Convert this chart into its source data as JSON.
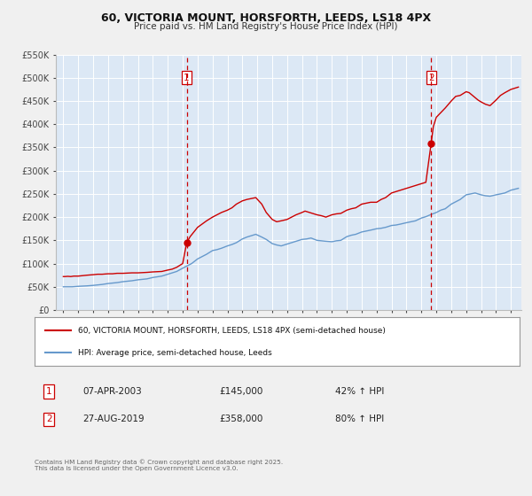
{
  "title": "60, VICTORIA MOUNT, HORSFORTH, LEEDS, LS18 4PX",
  "subtitle": "Price paid vs. HM Land Registry's House Price Index (HPI)",
  "bg_color": "#f0f0f0",
  "plot_bg_color": "#dce8f5",
  "grid_color": "#ffffff",
  "ylim": [
    0,
    550000
  ],
  "yticks": [
    0,
    50000,
    100000,
    150000,
    200000,
    250000,
    300000,
    350000,
    400000,
    450000,
    500000,
    550000
  ],
  "ytick_labels": [
    "£0",
    "£50K",
    "£100K",
    "£150K",
    "£200K",
    "£250K",
    "£300K",
    "£350K",
    "£400K",
    "£450K",
    "£500K",
    "£550K"
  ],
  "xlim_start": 1994.5,
  "xlim_end": 2025.7,
  "xticks": [
    1995,
    1996,
    1997,
    1998,
    1999,
    2000,
    2001,
    2002,
    2003,
    2004,
    2005,
    2006,
    2007,
    2008,
    2009,
    2010,
    2011,
    2012,
    2013,
    2014,
    2015,
    2016,
    2017,
    2018,
    2019,
    2020,
    2021,
    2022,
    2023,
    2024,
    2025
  ],
  "property_color": "#cc0000",
  "hpi_color": "#6699cc",
  "vline_color": "#cc0000",
  "marker_color": "#cc0000",
  "legend_label_property": "60, VICTORIA MOUNT, HORSFORTH, LEEDS, LS18 4PX (semi-detached house)",
  "legend_label_hpi": "HPI: Average price, semi-detached house, Leeds",
  "sale1_year": 2003.27,
  "sale1_price": 145000,
  "sale1_label": "1",
  "sale1_date": "07-APR-2003",
  "sale1_hpi_pct": "42%",
  "sale2_year": 2019.65,
  "sale2_price": 358000,
  "sale2_label": "2",
  "sale2_date": "27-AUG-2019",
  "sale2_hpi_pct": "80%",
  "footer": "Contains HM Land Registry data © Crown copyright and database right 2025.\nThis data is licensed under the Open Government Licence v3.0.",
  "property_x": [
    1995.0,
    1995.1,
    1995.3,
    1995.5,
    1995.7,
    1996.0,
    1996.3,
    1996.6,
    1997.0,
    1997.3,
    1997.6,
    1998.0,
    1998.3,
    1998.6,
    1999.0,
    1999.3,
    1999.6,
    2000.0,
    2000.3,
    2000.6,
    2001.0,
    2001.3,
    2001.6,
    2002.0,
    2002.3,
    2002.6,
    2003.0,
    2003.27,
    2003.5,
    2003.8,
    2004.0,
    2004.3,
    2004.6,
    2005.0,
    2005.3,
    2005.6,
    2006.0,
    2006.3,
    2006.6,
    2007.0,
    2007.3,
    2007.6,
    2007.9,
    2008.3,
    2008.6,
    2009.0,
    2009.3,
    2009.6,
    2010.0,
    2010.3,
    2010.6,
    2011.0,
    2011.2,
    2011.5,
    2011.8,
    2012.0,
    2012.3,
    2012.6,
    2013.0,
    2013.3,
    2013.6,
    2014.0,
    2014.3,
    2014.6,
    2015.0,
    2015.3,
    2015.6,
    2016.0,
    2016.3,
    2016.6,
    2017.0,
    2017.3,
    2017.6,
    2018.0,
    2018.3,
    2018.6,
    2019.0,
    2019.3,
    2019.65,
    2019.8,
    2020.0,
    2020.3,
    2020.6,
    2021.0,
    2021.3,
    2021.6,
    2022.0,
    2022.2,
    2022.5,
    2022.8,
    2023.0,
    2023.3,
    2023.6,
    2024.0,
    2024.3,
    2024.6,
    2025.0,
    2025.5
  ],
  "property_y": [
    72000,
    72000,
    72500,
    72000,
    73000,
    73000,
    74000,
    75000,
    76000,
    77000,
    77000,
    78000,
    78000,
    79000,
    79000,
    79500,
    80000,
    80000,
    80500,
    81000,
    82000,
    82500,
    83000,
    86000,
    88000,
    92000,
    100000,
    145000,
    158000,
    170000,
    178000,
    185000,
    192000,
    200000,
    205000,
    210000,
    215000,
    220000,
    228000,
    235000,
    238000,
    240000,
    242000,
    228000,
    210000,
    195000,
    190000,
    192000,
    195000,
    200000,
    205000,
    210000,
    213000,
    210000,
    207000,
    205000,
    203000,
    200000,
    205000,
    207000,
    208000,
    215000,
    218000,
    220000,
    228000,
    230000,
    232000,
    232000,
    238000,
    242000,
    252000,
    255000,
    258000,
    262000,
    265000,
    268000,
    272000,
    275000,
    358000,
    395000,
    415000,
    425000,
    435000,
    450000,
    460000,
    462000,
    470000,
    468000,
    460000,
    452000,
    448000,
    443000,
    440000,
    452000,
    462000,
    468000,
    475000,
    480000
  ],
  "hpi_x": [
    1995.0,
    1995.3,
    1995.6,
    1996.0,
    1996.3,
    1996.6,
    1997.0,
    1997.3,
    1997.6,
    1998.0,
    1998.3,
    1998.6,
    1999.0,
    1999.3,
    1999.6,
    2000.0,
    2000.3,
    2000.6,
    2001.0,
    2001.3,
    2001.6,
    2002.0,
    2002.3,
    2002.6,
    2003.0,
    2003.3,
    2003.6,
    2004.0,
    2004.3,
    2004.6,
    2005.0,
    2005.3,
    2005.6,
    2006.0,
    2006.3,
    2006.6,
    2007.0,
    2007.3,
    2007.6,
    2007.9,
    2008.3,
    2008.6,
    2009.0,
    2009.3,
    2009.6,
    2010.0,
    2010.3,
    2010.6,
    2011.0,
    2011.3,
    2011.6,
    2012.0,
    2012.3,
    2012.6,
    2013.0,
    2013.3,
    2013.6,
    2014.0,
    2014.3,
    2014.6,
    2015.0,
    2015.3,
    2015.6,
    2016.0,
    2016.3,
    2016.6,
    2017.0,
    2017.3,
    2017.6,
    2018.0,
    2018.3,
    2018.6,
    2019.0,
    2019.3,
    2019.6,
    2020.0,
    2020.3,
    2020.6,
    2021.0,
    2021.3,
    2021.6,
    2022.0,
    2022.3,
    2022.6,
    2023.0,
    2023.3,
    2023.6,
    2024.0,
    2024.3,
    2024.6,
    2025.0,
    2025.5
  ],
  "hpi_y": [
    50000,
    50000,
    50000,
    51000,
    51500,
    52000,
    53000,
    54000,
    55000,
    57000,
    58000,
    59000,
    61000,
    62000,
    63000,
    65000,
    66000,
    67000,
    70000,
    71500,
    73000,
    77000,
    80000,
    83000,
    90000,
    95000,
    100000,
    110000,
    115000,
    120000,
    128000,
    130000,
    133000,
    138000,
    141000,
    145000,
    153000,
    157000,
    160000,
    163000,
    157000,
    152000,
    143000,
    140000,
    138000,
    142000,
    145000,
    148000,
    152000,
    153000,
    155000,
    150000,
    149000,
    148000,
    147000,
    149000,
    150000,
    158000,
    161000,
    163000,
    168000,
    170000,
    172000,
    175000,
    176000,
    178000,
    182000,
    183000,
    185000,
    188000,
    190000,
    192000,
    198000,
    201000,
    205000,
    210000,
    215000,
    218000,
    228000,
    233000,
    238000,
    248000,
    250000,
    252000,
    248000,
    246000,
    245000,
    248000,
    250000,
    252000,
    258000,
    262000
  ]
}
